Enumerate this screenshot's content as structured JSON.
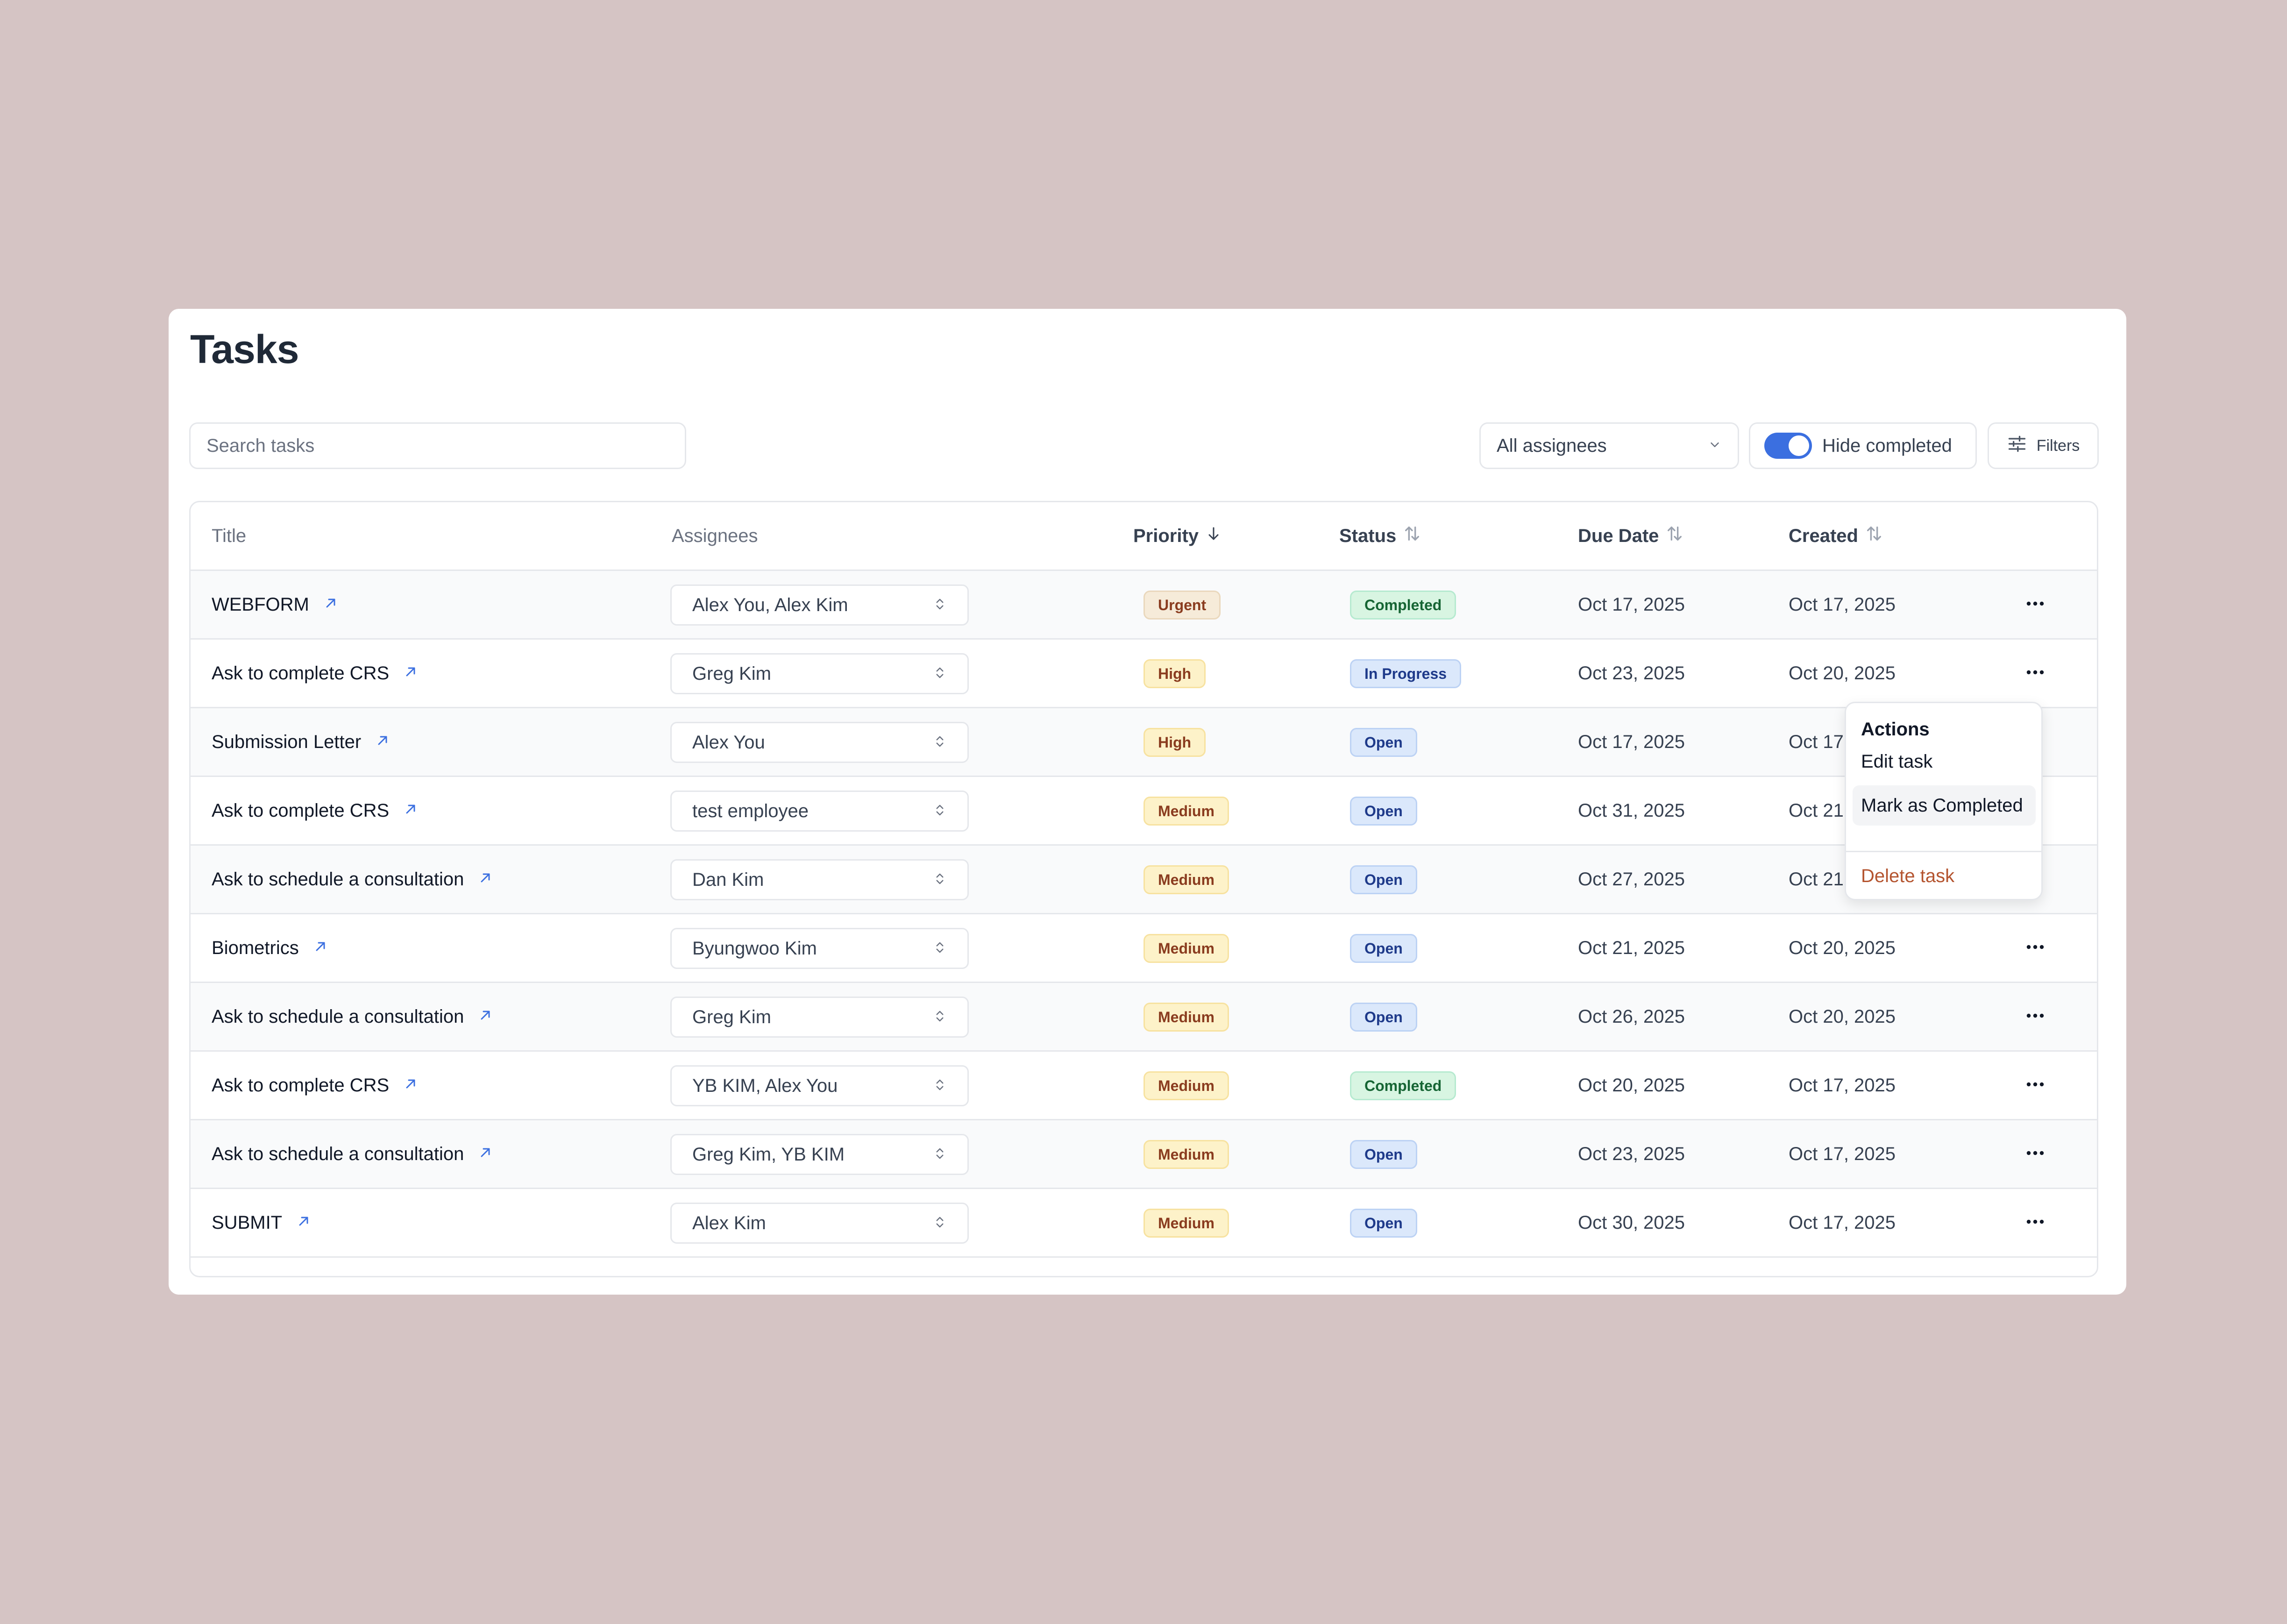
{
  "page": {
    "title": "Tasks"
  },
  "toolbar": {
    "search_placeholder": "Search tasks",
    "assignee_filter": "All assignees",
    "hide_completed_label": "Hide completed",
    "hide_completed_on": true,
    "filters_label": "Filters"
  },
  "table": {
    "headers": {
      "title": "Title",
      "assignees": "Assignees",
      "priority": "Priority",
      "status": "Status",
      "due_date": "Due Date",
      "created": "Created"
    },
    "rows": [
      {
        "title": "WEBFORM",
        "assignees": "Alex You, Alex Kim",
        "priority": "Urgent",
        "status": "Completed",
        "due": "Oct 17, 2025",
        "created": "Oct 17, 2025"
      },
      {
        "title": "Ask to complete CRS",
        "assignees": "Greg Kim",
        "priority": "High",
        "status": "In Progress",
        "due": "Oct 23, 2025",
        "created": "Oct 20, 2025"
      },
      {
        "title": "Submission Letter",
        "assignees": "Alex You",
        "priority": "High",
        "status": "Open",
        "due": "Oct 17, 2025",
        "created": "Oct 17,"
      },
      {
        "title": "Ask to complete CRS",
        "assignees": "test employee",
        "priority": "Medium",
        "status": "Open",
        "due": "Oct 31, 2025",
        "created": "Oct 21"
      },
      {
        "title": "Ask to schedule a consultation",
        "assignees": "Dan Kim",
        "priority": "Medium",
        "status": "Open",
        "due": "Oct 27, 2025",
        "created": "Oct 21"
      },
      {
        "title": "Biometrics",
        "assignees": "Byungwoo Kim",
        "priority": "Medium",
        "status": "Open",
        "due": "Oct 21, 2025",
        "created": "Oct 20, 2025"
      },
      {
        "title": "Ask to schedule a consultation",
        "assignees": "Greg Kim",
        "priority": "Medium",
        "status": "Open",
        "due": "Oct 26, 2025",
        "created": "Oct 20, 2025"
      },
      {
        "title": "Ask to complete CRS",
        "assignees": "YB KIM, Alex You",
        "priority": "Medium",
        "status": "Completed",
        "due": "Oct 20, 2025",
        "created": "Oct 17, 2025"
      },
      {
        "title": "Ask to schedule a consultation",
        "assignees": "Greg Kim, YB KIM",
        "priority": "Medium",
        "status": "Open",
        "due": "Oct 23, 2025",
        "created": "Oct 17, 2025"
      },
      {
        "title": "SUBMIT",
        "assignees": "Alex Kim",
        "priority": "Medium",
        "status": "Open",
        "due": "Oct 30, 2025",
        "created": "Oct 17, 2025"
      }
    ]
  },
  "actions_menu": {
    "heading": "Actions",
    "edit": "Edit task",
    "mark_completed": "Mark as Completed",
    "delete": "Delete task"
  },
  "colors": {
    "background": "#d5c4c4",
    "accent": "#3b6fe0",
    "danger": "#b4542f"
  }
}
